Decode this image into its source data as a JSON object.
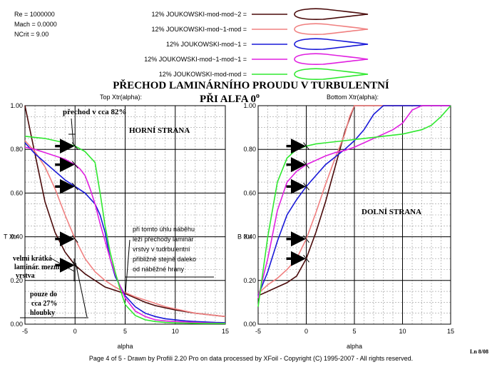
{
  "info": [
    "Re = 1000000",
    "Mach = 0.0000",
    "NCrit = 9.00"
  ],
  "legend": [
    {
      "label": "12% JOUKOWSKI-mod-mod~2 =",
      "color": "#4a0a0a"
    },
    {
      "label": "12% JOUKOWSKI-mod~1-mod =",
      "color": "#f08080"
    },
    {
      "label": "12% JOUKOWSKI-mod~1 =",
      "color": "#1818d8"
    },
    {
      "label": "12% JOUKOWSKI-mod~1-mod~1 =",
      "color": "#e020e0"
    },
    {
      "label": "12% JOUKOWSKI-mod-mod =",
      "color": "#30e830"
    }
  ],
  "heading": {
    "line1": "PŘECHOD LAMINÁRNÍHO PROUDU V TURBULENTNÍ",
    "line2": "PŘI ALFA  0",
    "sup": "o"
  },
  "annotations": {
    "prechod": "přechod v cca 82%",
    "horni": "HORNÍ STRANA",
    "dolni": "DOLNÍ STRANA",
    "note": [
      "při tomto úhlu náběhu",
      "leží přechody laminár",
      "vrstvy v tudrbulentní",
      "přibližně stejně daleko",
      "od náběžné hrany"
    ],
    "velmi": [
      "velmi krátká",
      "laminár. mezní",
      "vrstva"
    ],
    "pouze": [
      "pouze do",
      "cca 27%",
      "hloubky"
    ]
  },
  "footer": "Page 4 of 5   -   Drawn by Profili 2.20 Pro on data processed by  XFoil - Copyright (C) 1995-2007 - All rights reserved.",
  "corner": "Ln 8/08",
  "chart_data": [
    {
      "type": "line",
      "title": "Top Xtr(alpha):",
      "xlabel": "alpha",
      "ylabel": "T Xtr",
      "xlim": [
        -5,
        15
      ],
      "ylim": [
        0,
        1
      ],
      "xticks": [
        "-5",
        "0",
        "5",
        "10",
        "15"
      ],
      "yticks": [
        "0.00",
        "0.20",
        "0.40",
        "0.60",
        "0.80",
        "1.00"
      ],
      "grid": true,
      "series": [
        {
          "color": "#4a0a0a",
          "x": [
            -5,
            -4,
            -3,
            -2,
            -1,
            0,
            1,
            2,
            3,
            4,
            5,
            6,
            7,
            8,
            9,
            10,
            11,
            12,
            13,
            14,
            15
          ],
          "y": [
            1.0,
            0.78,
            0.56,
            0.42,
            0.33,
            0.27,
            0.23,
            0.2,
            0.17,
            0.155,
            0.14,
            0.12,
            0.1,
            0.085,
            0.075,
            0.065,
            0.058,
            0.05,
            0.045,
            0.04,
            0.035
          ]
        },
        {
          "color": "#f08080",
          "x": [
            -5,
            -4,
            -3,
            -2,
            -1,
            0,
            1,
            2,
            3,
            4,
            5,
            6,
            7,
            8,
            9,
            10,
            11,
            12,
            13,
            14,
            15
          ],
          "y": [
            0.84,
            0.79,
            0.72,
            0.62,
            0.5,
            0.39,
            0.3,
            0.24,
            0.2,
            0.17,
            0.145,
            0.125,
            0.11,
            0.095,
            0.08,
            0.07,
            0.06,
            0.05,
            0.045,
            0.04,
            0.035
          ]
        },
        {
          "color": "#1818d8",
          "x": [
            -5,
            -4,
            -3,
            -2,
            -1,
            0,
            1,
            2,
            2.5,
            3,
            3.5,
            4,
            5,
            6,
            7,
            8,
            9,
            10,
            11,
            12,
            13,
            14,
            15
          ],
          "y": [
            0.83,
            0.78,
            0.74,
            0.7,
            0.66,
            0.63,
            0.6,
            0.55,
            0.5,
            0.42,
            0.3,
            0.22,
            0.13,
            0.08,
            0.05,
            0.035,
            0.025,
            0.02,
            0.015,
            0.012,
            0.01,
            0.008,
            0.007
          ]
        },
        {
          "color": "#e020e0",
          "x": [
            -5,
            -4,
            -3,
            -2,
            -1,
            0,
            0.5,
            1,
            1.5,
            2,
            2.5,
            3,
            3.5,
            4,
            5,
            6,
            7,
            8,
            9,
            10,
            11,
            12,
            13,
            14,
            15
          ],
          "y": [
            0.81,
            0.8,
            0.785,
            0.77,
            0.755,
            0.73,
            0.71,
            0.68,
            0.62,
            0.55,
            0.46,
            0.38,
            0.3,
            0.23,
            0.12,
            0.06,
            0.035,
            0.02,
            0.015,
            0.012,
            0.01,
            0.008,
            0.006,
            0.005,
            0.004
          ]
        },
        {
          "color": "#30e830",
          "x": [
            -5,
            -4,
            -3,
            -2,
            -1,
            0,
            1,
            2,
            2.5,
            3,
            3.5,
            4,
            4.5,
            5,
            6,
            7,
            8,
            9,
            10,
            11,
            12,
            13,
            14,
            15
          ],
          "y": [
            0.86,
            0.855,
            0.85,
            0.84,
            0.83,
            0.815,
            0.79,
            0.74,
            0.6,
            0.45,
            0.33,
            0.24,
            0.16,
            0.09,
            0.04,
            0.02,
            0.012,
            0.008,
            0.006,
            0.005,
            0.004,
            0.003,
            0.003,
            0.003
          ]
        }
      ]
    },
    {
      "type": "line",
      "title": "Bottom Xtr(alpha):",
      "xlabel": "alpha",
      "ylabel": "B Xtr",
      "xlim": [
        -5,
        15
      ],
      "ylim": [
        0,
        1
      ],
      "xticks": [
        "-5",
        "0",
        "5",
        "10",
        "15"
      ],
      "yticks": [
        "0.00",
        "0.20",
        "0.40",
        "0.60",
        "0.80",
        "1.00"
      ],
      "grid": true,
      "series": [
        {
          "color": "#4a0a0a",
          "x": [
            -5,
            -4,
            -3,
            -2,
            -1,
            0,
            1,
            2,
            3,
            4,
            5,
            6,
            7,
            8,
            9,
            10,
            11,
            12,
            13,
            14,
            15
          ],
          "y": [
            0.13,
            0.15,
            0.17,
            0.19,
            0.22,
            0.3,
            0.42,
            0.56,
            0.72,
            0.88,
            1.0,
            1.0,
            1.0,
            1.0,
            1.0,
            1.0,
            1.0,
            1.0,
            1.0,
            1.0,
            1.0
          ]
        },
        {
          "color": "#f08080",
          "x": [
            -5,
            -4,
            -3,
            -2,
            -1,
            0,
            1,
            2,
            3,
            4,
            4.5,
            5,
            6,
            7,
            8,
            9,
            10,
            11,
            12,
            13,
            14,
            15
          ],
          "y": [
            0.14,
            0.18,
            0.21,
            0.25,
            0.3,
            0.39,
            0.51,
            0.64,
            0.76,
            0.87,
            0.95,
            1.0,
            1.0,
            1.0,
            1.0,
            1.0,
            1.0,
            1.0,
            1.0,
            1.0,
            1.0,
            1.0
          ]
        },
        {
          "color": "#1818d8",
          "x": [
            -5,
            -4,
            -3,
            -2,
            -1,
            0,
            1,
            2,
            3,
            4,
            5,
            6,
            7,
            8,
            9,
            10,
            11,
            12,
            13,
            14,
            15
          ],
          "y": [
            0.13,
            0.24,
            0.38,
            0.5,
            0.57,
            0.63,
            0.68,
            0.73,
            0.765,
            0.8,
            0.84,
            0.89,
            0.96,
            1.0,
            1.0,
            1.0,
            1.0,
            1.0,
            1.0,
            1.0,
            1.0
          ]
        },
        {
          "color": "#e020e0",
          "x": [
            -5,
            -4,
            -3,
            -2,
            -1,
            0,
            1,
            2,
            3,
            4,
            5,
            6,
            7,
            8,
            9,
            10,
            11,
            12,
            13,
            14,
            15
          ],
          "y": [
            0.12,
            0.3,
            0.52,
            0.65,
            0.7,
            0.73,
            0.75,
            0.77,
            0.785,
            0.795,
            0.81,
            0.83,
            0.85,
            0.87,
            0.89,
            0.92,
            0.98,
            1.0,
            1.0,
            1.0,
            1.0
          ]
        },
        {
          "color": "#30e830",
          "x": [
            -5,
            -4,
            -3,
            -2,
            -1,
            0,
            1,
            2,
            3,
            4,
            5,
            6,
            7,
            8,
            9,
            10,
            11,
            12,
            13,
            14,
            15
          ],
          "y": [
            0.08,
            0.4,
            0.65,
            0.76,
            0.8,
            0.815,
            0.825,
            0.83,
            0.835,
            0.84,
            0.845,
            0.85,
            0.855,
            0.86,
            0.865,
            0.87,
            0.88,
            0.89,
            0.91,
            0.95,
            1.0
          ]
        }
      ]
    }
  ]
}
